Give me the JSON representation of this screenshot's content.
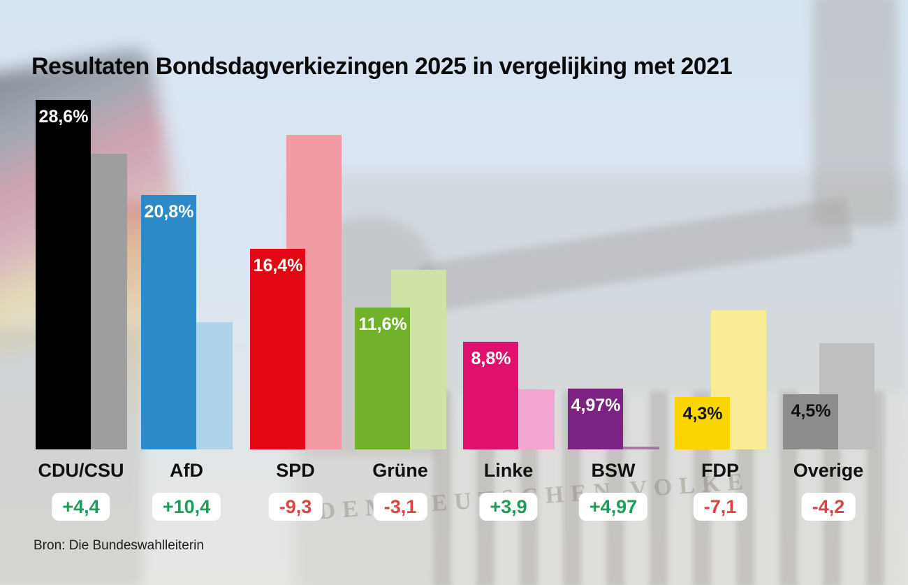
{
  "title": "Resultaten Bondsdagverkiezingen 2025 in vergelijking met 2021",
  "source": "Bron: Die Bundeswahlleiterin",
  "background": {
    "inscription": "DEM DEUTSCHEN VOLKE"
  },
  "chart_data": {
    "type": "bar",
    "title": "Resultaten Bondsdagverkiezingen 2025 in vergelijking met 2021",
    "categories": [
      "CDU/CSU",
      "AfD",
      "SPD",
      "Grüne",
      "Linke",
      "BSW",
      "FDP",
      "Overige"
    ],
    "series": [
      {
        "name": "2025",
        "values": [
          28.6,
          20.8,
          16.4,
          11.6,
          8.8,
          4.97,
          4.3,
          4.5
        ],
        "colors": [
          "#000000",
          "#2e89c9",
          "#e30613",
          "#72b12c",
          "#e0116e",
          "#7b2282",
          "#fbd500",
          "#8d8d8d"
        ]
      },
      {
        "name": "2021",
        "values": [
          24.2,
          10.4,
          25.7,
          14.7,
          4.9,
          0,
          11.4,
          8.7
        ],
        "colors": [
          "#9e9e9e",
          "#aed3ea",
          "#f39ba3",
          "#cfe3a6",
          "#f3a6d2",
          "#a777a4",
          "#faeb99",
          "#bfbfbf"
        ]
      }
    ],
    "value_labels": [
      "28,6%",
      "20,8%",
      "16,4%",
      "11,6%",
      "8,8%",
      "4,97%",
      "4,3%",
      "4,5%"
    ],
    "value_label_colors": [
      "#ffffff",
      "#ffffff",
      "#ffffff",
      "#ffffff",
      "#ffffff",
      "#ffffff",
      "#111111",
      "#111111"
    ],
    "changes": [
      "+4,4",
      "+10,4",
      "-9,3",
      "-3,1",
      "+3,9",
      "+4,97",
      "-7,1",
      "-4,2"
    ],
    "change_positive_color": "#1d9c5b",
    "change_negative_color": "#d94444",
    "ylim": [
      0,
      30
    ],
    "grid": false,
    "legend": "none"
  }
}
